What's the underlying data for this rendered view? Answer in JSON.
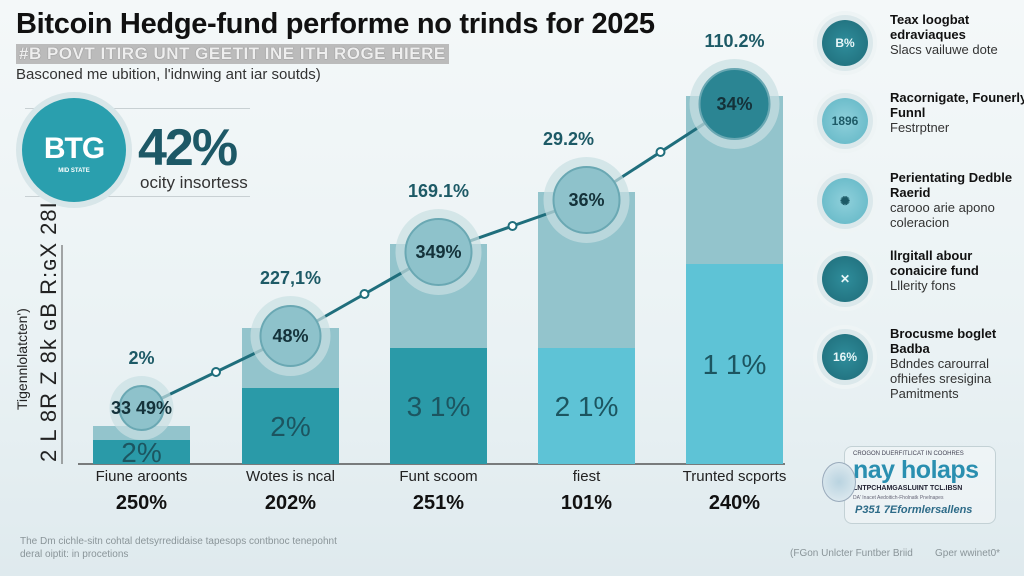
{
  "header": {
    "title": "Bitcoin Hedge-fund performe no trinds for 2025",
    "subtitle": "#B POVT ITIRG UNT GEETIT INE ITH ROGE HIERE",
    "description": "Basconed me ubition, l'idnwing ant iar soutds)"
  },
  "kpi": {
    "logo": "BTG",
    "logo_sub": "MID STATE",
    "value": "42%",
    "label": "ocity insortess",
    "color": "#2a9fae"
  },
  "chart_data": {
    "type": "bar",
    "stacked": true,
    "categories": [
      "Fiune aroonts",
      "Wotes is ncal",
      "Funt scoom",
      "fiest",
      "Trunted scports"
    ],
    "category_values": [
      "250%",
      "202%",
      "251%",
      "101%",
      "240%"
    ],
    "series": [
      {
        "values": [
          6,
          19,
          29,
          29,
          50
        ],
        "labels": [
          "2%",
          "2%",
          "3 1%",
          "2 1%",
          "1 1%"
        ],
        "color": "#2a9aa8"
      },
      {
        "values": [
          3.5,
          15,
          26,
          39,
          42
        ],
        "labels": [
          "",
          "",
          "",
          "",
          ""
        ],
        "color": "#93c4cc"
      }
    ],
    "line": {
      "labels": [
        "33 49%",
        "48%",
        "349%",
        "36%",
        "34%"
      ]
    },
    "top_labels": [
      "2%",
      "227,1%",
      "169.1%",
      "29.2%",
      "110.2%"
    ],
    "ylabel": "Tigennlolatcten')",
    "ylabel2": "2 L 8R Z 8k ɢB R:ɢX 28I",
    "ylim": [
      0,
      100
    ],
    "grid": false,
    "colors": {
      "line": "#1f6e7c",
      "bar_dark": "#2a9aa8",
      "bar_light": "#93c4cc",
      "bar_cyan": "#5ec3d6"
    }
  },
  "sidebar": {
    "items": [
      {
        "icon": "B%",
        "title": "Teax loogbat edraviaques",
        "sub": "Slacs vailuwe dote"
      },
      {
        "icon": "1896",
        "title": "Racornigate, Founerly Funnl",
        "sub": "Festrptner"
      },
      {
        "icon": "",
        "title": "Perientating Dedble Raerid",
        "sub": "carooo arie apono coleracion"
      },
      {
        "icon": "",
        "title": "llrgitall abour conaicire fund",
        "sub": "Lllerity fons"
      },
      {
        "icon": "16%",
        "title": "Brocusme boglet Badba",
        "sub": "Bdndes carourral ofhiefes sresigina Pamitments"
      }
    ]
  },
  "badge": {
    "line1": "CROGON DUERFITLICAT IN COOHRES",
    "name": "nay holaps",
    "line3": "LNTPCHAMGASLUINT TCL.IBSN",
    "line4": "DA' Inacet Aedoitich-Fholnatk Pnelnapes",
    "line5": "P351 7Eformlersallens"
  },
  "footer": {
    "note1": "The Dm cichle-sitn cohtal detsyrredidaise tapesops contbnoc tenepohnt",
    "note2": "deral oiptit: in procetions",
    "source": "(FGon Unlcter Funtber Briid",
    "right": "Gper wwinet0*"
  }
}
